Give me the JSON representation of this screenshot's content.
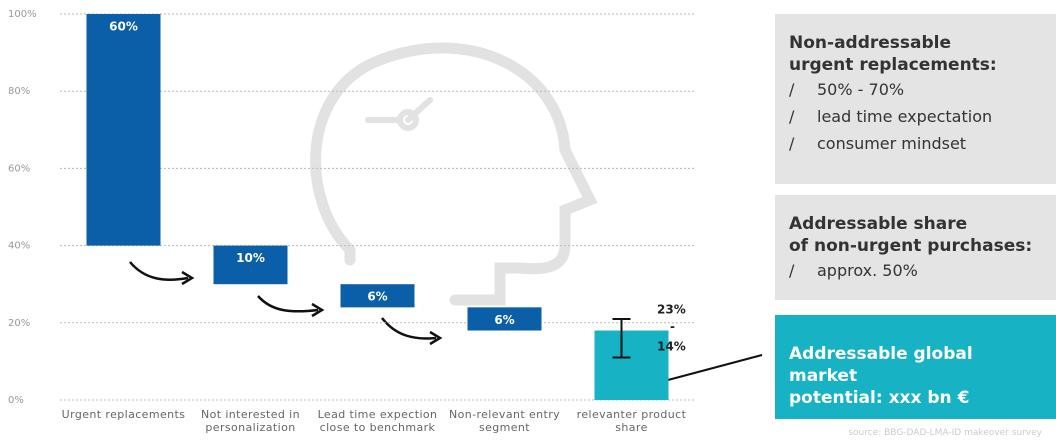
{
  "chart_data": {
    "type": "waterfall",
    "categories": [
      "Urgent replacements",
      "Not interested in personalization",
      "Lead time expection close to benchmark",
      "Non-relevant entry segment",
      "relevanter product share"
    ],
    "values": [
      60,
      10,
      6,
      6,
      18
    ],
    "value_labels": [
      "60%",
      "10%",
      "6%",
      "6%",
      null
    ],
    "start": 100,
    "colors": [
      "#0b5ea8",
      "#0b5ea8",
      "#0b5ea8",
      "#0b5ea8",
      "#17b2c3"
    ],
    "error_bar": {
      "index": 4,
      "low": 11,
      "high": 21
    },
    "annotations": [
      "23%",
      "-",
      "14%"
    ],
    "ylim": [
      0,
      100
    ],
    "yticks": [
      {
        "value": 0,
        "label": "0%"
      },
      {
        "value": 20,
        "label": "20%"
      },
      {
        "value": 40,
        "label": "40%"
      },
      {
        "value": 60,
        "label": "60%"
      },
      {
        "value": 80,
        "label": "80%"
      },
      {
        "value": 100,
        "label": "100%"
      }
    ],
    "grid": true
  },
  "panels": [
    {
      "title_lines": [
        "Non-addressable",
        "urgent replacements:"
      ],
      "marker": "/",
      "bullets": [
        "50% - 70%",
        "lead time expectation",
        "consumer  mindset"
      ]
    },
    {
      "title_lines": [
        "Addressable share",
        "of non-urgent purchases:"
      ],
      "marker": "/",
      "bullets": [
        "approx. 50%"
      ]
    },
    {
      "title_lines": [
        "Addressable global market",
        "potential: xxx bn €"
      ]
    }
  ],
  "source": "source: BBG-DAD-LMA-ID makeover survey"
}
